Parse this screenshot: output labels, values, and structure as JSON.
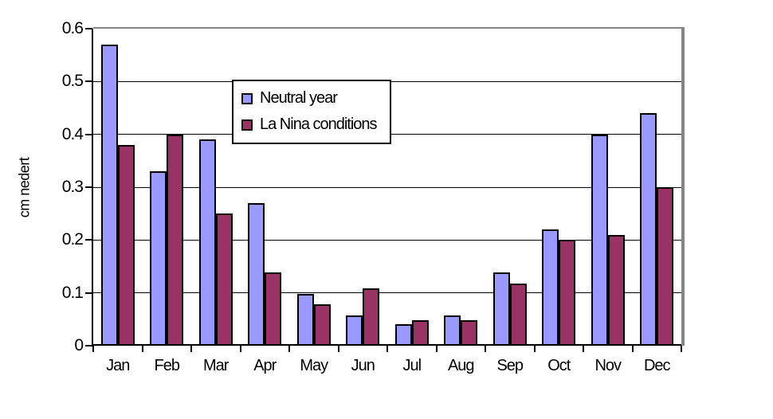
{
  "chart_data": {
    "type": "bar",
    "categories": [
      "Jan",
      "Feb",
      "Mar",
      "Apr",
      "May",
      "Jun",
      "Jul",
      "Aug",
      "Sep",
      "Oct",
      "Nov",
      "Dec"
    ],
    "series": [
      {
        "name": "Neutral year",
        "color": "#9999FF",
        "values": [
          0.57,
          0.33,
          0.39,
          0.27,
          0.098,
          0.058,
          0.04,
          0.058,
          0.138,
          0.22,
          0.4,
          0.44
        ]
      },
      {
        "name": "La Nina conditions",
        "color": "#993366",
        "values": [
          0.38,
          0.4,
          0.25,
          0.138,
          0.078,
          0.108,
          0.048,
          0.048,
          0.118,
          0.2,
          0.21,
          0.3
        ]
      }
    ],
    "title": "",
    "xlabel": "",
    "ylabel": "cm nedert",
    "ylim": [
      0,
      0.6
    ],
    "ytick_step": 0.1,
    "ytick_labels": [
      "0",
      "0.1",
      "0.2",
      "0.3",
      "0.4",
      "0.5",
      "0.6"
    ],
    "grid": true,
    "legend_position": "upper-center",
    "colors": {
      "bar_border": "#000000",
      "gridline": "#000000",
      "plot_border": "#858585",
      "background": "#FFFFFF",
      "text": "#000000"
    }
  }
}
